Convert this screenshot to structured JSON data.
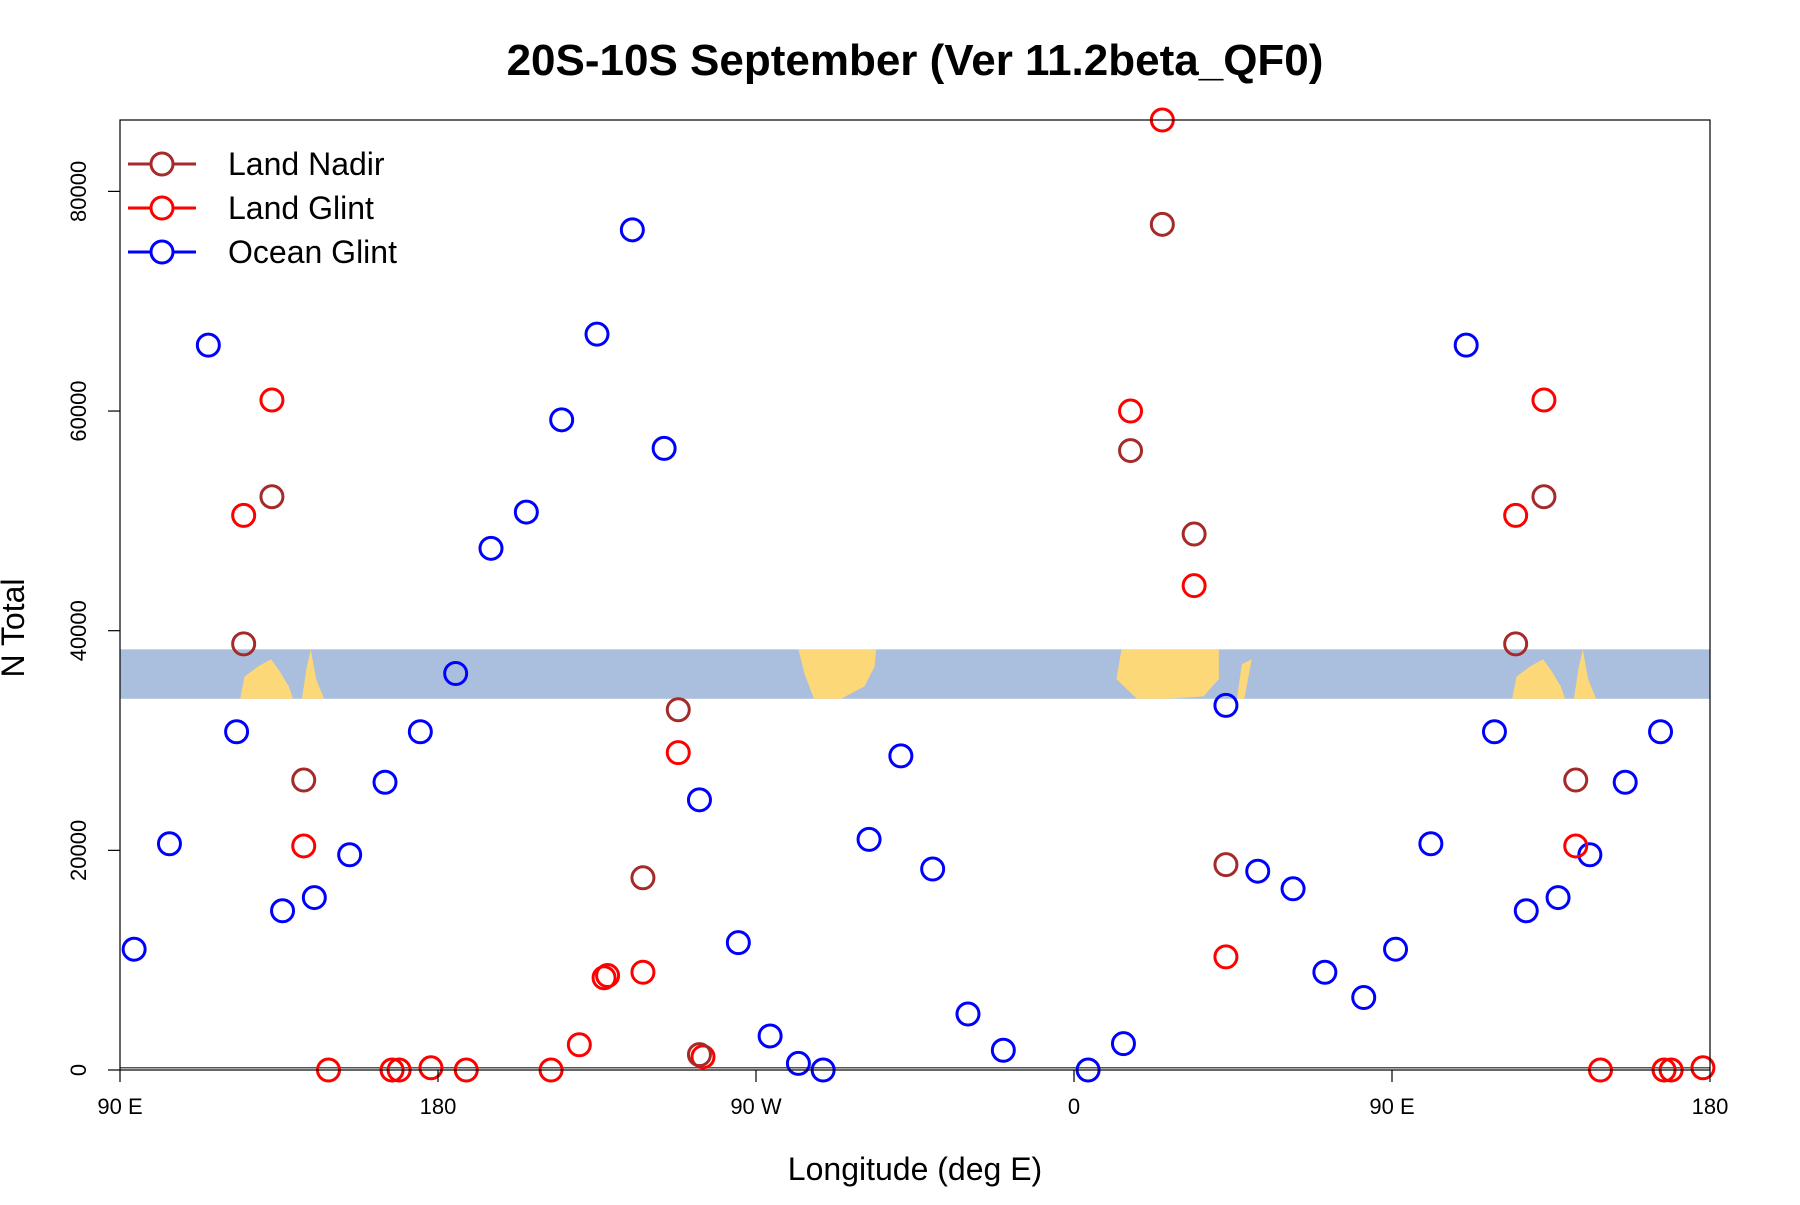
{
  "chart_data": {
    "type": "scatter",
    "title": "20S-10S September (Ver 11.2beta_QF0)",
    "xlabel": "Longitude (deg E)",
    "ylabel": "N Total",
    "x_axis_wraps": "90 E to 180 through 180, 90 W, 0, 90 E (longitude wraps, total span 450 deg)",
    "xlim": [
      90,
      540
    ],
    "ylim": [
      0,
      86500
    ],
    "x_ticks": [
      {
        "value": 90,
        "label": "90 E"
      },
      {
        "value": 180,
        "label": "180"
      },
      {
        "value": 270,
        "label": "90 W"
      },
      {
        "value": 360,
        "label": "0"
      },
      {
        "value": 450,
        "label": "90 E"
      },
      {
        "value": 540,
        "label": "180"
      }
    ],
    "y_ticks": [
      {
        "value": 0,
        "label": "0"
      },
      {
        "value": 20000,
        "label": "20000"
      },
      {
        "value": 40000,
        "label": "40000"
      },
      {
        "value": 60000,
        "label": "60000"
      },
      {
        "value": 80000,
        "label": "80000"
      }
    ],
    "legend": {
      "position": "top-left"
    },
    "map_strip": {
      "latitude_band": "20S-10S",
      "y_range": [
        33800,
        38300
      ],
      "ocean_color": "#a9bfdd",
      "land_color": "#fdd879"
    },
    "baseline_value": 200,
    "series": [
      {
        "name": "Land Nadir",
        "color": "#a52a2a",
        "points": [
          [
            125,
            38800
          ],
          [
            133,
            52200
          ],
          [
            142,
            26400
          ],
          [
            238,
            17500
          ],
          [
            248,
            32800
          ],
          [
            254,
            1400
          ],
          [
            385,
            77000
          ],
          [
            376,
            56400
          ],
          [
            394,
            48800
          ],
          [
            403,
            18700
          ],
          [
            485,
            38800
          ],
          [
            493,
            52200
          ],
          [
            502,
            26400
          ]
        ]
      },
      {
        "name": "Land Glint",
        "color": "#ff0000",
        "points": [
          [
            125,
            50500
          ],
          [
            133,
            61000
          ],
          [
            142,
            20400
          ],
          [
            149,
            0
          ],
          [
            167,
            0
          ],
          [
            169,
            0
          ],
          [
            178,
            200
          ],
          [
            188,
            0
          ],
          [
            212,
            0
          ],
          [
            255,
            1200
          ],
          [
            248,
            28900
          ],
          [
            238,
            8900
          ],
          [
            228,
            8600
          ],
          [
            227,
            8400
          ],
          [
            220,
            2300
          ],
          [
            376,
            60000
          ],
          [
            385,
            86500
          ],
          [
            394,
            44100
          ],
          [
            403,
            10300
          ],
          [
            485,
            50500
          ],
          [
            493,
            61000
          ],
          [
            502,
            20400
          ],
          [
            509,
            0
          ],
          [
            527,
            0
          ],
          [
            529,
            0
          ],
          [
            538,
            200
          ]
        ]
      },
      {
        "name": "Ocean Glint",
        "color": "#0000ff",
        "points": [
          [
            94,
            11000
          ],
          [
            104,
            20600
          ],
          [
            115,
            66000
          ],
          [
            123,
            30800
          ],
          [
            136,
            14500
          ],
          [
            145,
            15700
          ],
          [
            155,
            19600
          ],
          [
            165,
            26200
          ],
          [
            175,
            30800
          ],
          [
            185,
            36100
          ],
          [
            195,
            47500
          ],
          [
            205,
            50800
          ],
          [
            215,
            59200
          ],
          [
            225,
            67000
          ],
          [
            235,
            76500
          ],
          [
            244,
            56600
          ],
          [
            254,
            24600
          ],
          [
            265,
            11600
          ],
          [
            274,
            3100
          ],
          [
            282,
            600
          ],
          [
            289,
            0
          ],
          [
            302,
            21000
          ],
          [
            311,
            28600
          ],
          [
            320,
            18300
          ],
          [
            330,
            5100
          ],
          [
            340,
            1800
          ],
          [
            364,
            0
          ],
          [
            374,
            2400
          ],
          [
            403,
            33200
          ],
          [
            412,
            18100
          ],
          [
            422,
            16500
          ],
          [
            431,
            8900
          ],
          [
            442,
            6600
          ],
          [
            451,
            11000
          ],
          [
            461,
            20600
          ],
          [
            471,
            66000
          ],
          [
            479,
            30800
          ],
          [
            488,
            14500
          ],
          [
            497,
            15700
          ],
          [
            506,
            19600
          ],
          [
            516,
            26200
          ],
          [
            526,
            30800
          ]
        ]
      }
    ]
  }
}
